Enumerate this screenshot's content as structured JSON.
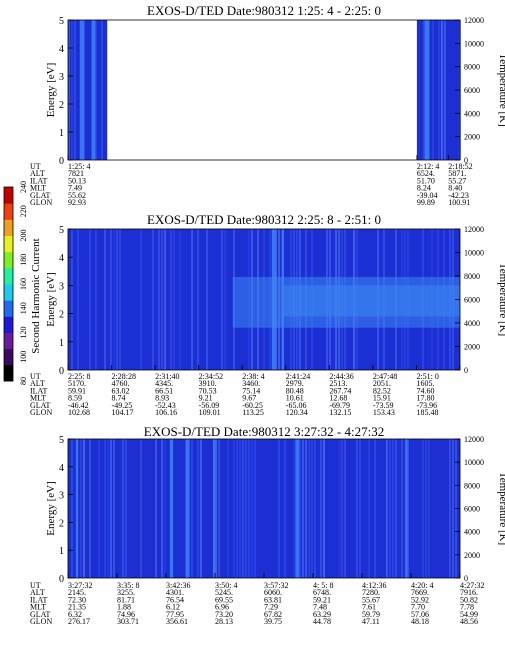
{
  "colors": {
    "background": "#1c2fd2",
    "stripe": "#3f7ef5",
    "data_gap": "#ffffff"
  },
  "colorbar": {
    "label": "Second Harmonic Current",
    "ticks": [
      "80",
      "100",
      "120",
      "140",
      "160",
      "180",
      "200",
      "220",
      "240"
    ],
    "colors": [
      "#000000",
      "#3a0a5e",
      "#6a1aa0",
      "#1a1ad8",
      "#1f6cf0",
      "#1fc8f0",
      "#22f0a0",
      "#7cf020",
      "#e8f020",
      "#f0a020",
      "#f04010",
      "#c00000"
    ]
  },
  "ephem_labels": [
    "UT",
    "ALT",
    "ILAT",
    "MLT",
    "GLAT",
    "GLON"
  ],
  "chart_data": [
    {
      "type": "heatmap",
      "title": "EXOS-D/TED   Date:980312  1:25: 4 - 2:25: 0",
      "ylabel": "Energy [eV]",
      "y2label": "Temperature [K]",
      "ylim": [
        0,
        5
      ],
      "y2lim": [
        0,
        12000
      ],
      "yticks": [
        "0",
        "1",
        "2",
        "3",
        "4",
        "5"
      ],
      "y2ticks": [
        "0",
        "2000",
        "4000",
        "6000",
        "8000",
        "10000",
        "12000"
      ],
      "coverage": [
        [
          0,
          0.1
        ],
        [
          0.89,
          1
        ]
      ],
      "stripes": [
        [
          0.03,
          0.012
        ],
        [
          0.06,
          0.01
        ],
        [
          0.91,
          0.012
        ]
      ],
      "ephem_positions": [
        0,
        0.89,
        0.97
      ],
      "ephemeris": {
        "UT": [
          "1:25: 4",
          "2:12: 4",
          "2:18:52"
        ],
        "ALT": [
          "7821",
          "6524.",
          "5871."
        ],
        "ILAT": [
          "50.13",
          "51.70",
          "55.27"
        ],
        "MLT": [
          "7.49",
          "8.24",
          "8.40"
        ],
        "GLAT": [
          "55.62",
          "-39.04",
          "-42.23"
        ],
        "GLON": [
          "92.93",
          "99.89",
          "100.91"
        ]
      }
    },
    {
      "type": "heatmap",
      "title": "EXOS-D/TED   Date:980312  2:25: 8 - 2:51: 0",
      "ylabel": "Energy [eV]",
      "y2label": "Temperature [K]",
      "ylim": [
        0,
        5
      ],
      "y2lim": [
        0,
        12000
      ],
      "yticks": [
        "0",
        "1",
        "2",
        "3",
        "4",
        "5"
      ],
      "y2ticks": [
        "0",
        "2000",
        "4000",
        "6000",
        "8000",
        "10000",
        "12000"
      ],
      "coverage": [
        [
          0,
          1
        ]
      ],
      "stripes": [
        [
          0.52,
          0.012
        ],
        [
          0.545,
          0.006
        ]
      ],
      "bands": [
        [
          0.42,
          1,
          1.5,
          3.3
        ],
        [
          0.55,
          1,
          1.9,
          3.0
        ]
      ],
      "ephem_positions": [
        0,
        0.1111,
        0.2222,
        0.3333,
        0.4444,
        0.5556,
        0.6667,
        0.7778,
        0.8889,
        1
      ],
      "ephemeris": {
        "UT": [
          "2:25: 8",
          "2:28:28",
          "2:31:40",
          "2:34:52",
          "2:38: 4",
          "2:41:24",
          "2:44:36",
          "2:47:48",
          "2:51: 0",
          ""
        ],
        "ALT": [
          "5170.",
          "4760.",
          "4345.",
          "3910.",
          "3460.",
          "2979.",
          "2513.",
          "2051.",
          "1605.",
          ""
        ],
        "ILAT": [
          "59.91",
          "63.02",
          "66.51",
          "70.53",
          "75.14",
          "80.48",
          "267.74",
          "82.52",
          "74.60",
          ""
        ],
        "MLT": [
          "8.59",
          "8.74",
          "8.93",
          "9.21",
          "9.67",
          "10.61",
          "12.68",
          "15.91",
          "17.80",
          ""
        ],
        "GLAT": [
          "-46.42",
          "-49.25",
          "-52.43",
          "-56.09",
          "-60.25",
          "-65.06",
          "-69.79",
          "-73.59",
          "-73.96",
          ""
        ],
        "GLON": [
          "102.68",
          "104.17",
          "106.16",
          "109.01",
          "113.25",
          "120.34",
          "132.15",
          "153.43",
          "185.48",
          ""
        ]
      }
    },
    {
      "type": "heatmap",
      "title": "EXOS-D/TED   Date:980312  3:27:32 - 4:27:32",
      "ylabel": "Energy [eV]",
      "y2label": "Temperature [K]",
      "ylim": [
        0,
        5
      ],
      "y2lim": [
        0,
        12000
      ],
      "yticks": [
        "0",
        "1",
        "2",
        "3",
        "4",
        "5"
      ],
      "y2ticks": [
        "0",
        "2000",
        "4000",
        "6000",
        "8000",
        "10000",
        "12000"
      ],
      "coverage": [
        [
          0,
          1
        ]
      ],
      "stripes": [
        [
          0.02,
          0.006
        ],
        [
          0.26,
          0.008
        ],
        [
          0.3,
          0.01
        ],
        [
          0.37,
          0.006
        ],
        [
          0.58,
          0.01
        ],
        [
          0.86,
          0.006
        ]
      ],
      "ephem_positions": [
        0,
        0.125,
        0.25,
        0.375,
        0.5,
        0.625,
        0.75,
        0.875,
        1
      ],
      "ephemeris": {
        "UT": [
          "3:27:32",
          "3:35: 8",
          "3:42:36",
          "3:50: 4",
          "3:57:32",
          "4: 5: 8",
          "4:12:36",
          "4:20: 4",
          "4:27:32"
        ],
        "ALT": [
          "2145.",
          "3255.",
          "4301.",
          "5245.",
          "6060.",
          "6748.",
          "7280.",
          "7669.",
          "7916."
        ],
        "ILAT": [
          "72.30",
          "81.71",
          "76.54",
          "69.55",
          "63.81",
          "59.21",
          "55.67",
          "52.92",
          "50.82"
        ],
        "MLT": [
          "21.35",
          "1.88",
          "6.12",
          "6.96",
          "7.29",
          "7.48",
          "7.61",
          "7.70",
          "7.78"
        ],
        "GLAT": [
          "6.32",
          "74.96",
          "77.95",
          "73.20",
          "67.82",
          "63.29",
          "59.79",
          "57.06",
          "54.99"
        ],
        "GLON": [
          "276.17",
          "303.71",
          "356.61",
          "28.13",
          "39.75",
          "44.78",
          "47.11",
          "48.18",
          "48.56"
        ]
      }
    }
  ]
}
